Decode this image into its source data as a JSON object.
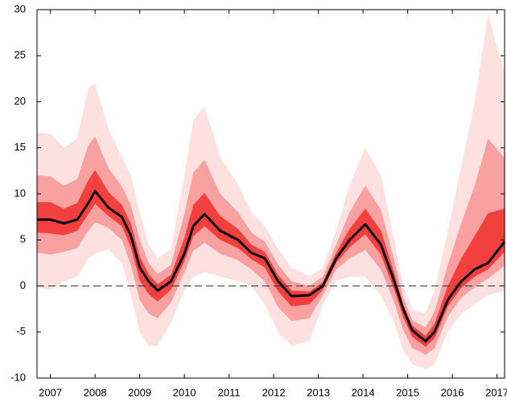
{
  "chart_data": {
    "type": "fan",
    "x": [
      2006.7,
      2007.0,
      2007.3,
      2007.6,
      2007.85,
      2008.0,
      2008.3,
      2008.6,
      2008.8,
      2009.0,
      2009.2,
      2009.4,
      2009.7,
      2010.0,
      2010.2,
      2010.45,
      2010.8,
      2011.2,
      2011.5,
      2011.8,
      2012.1,
      2012.4,
      2012.8,
      2013.1,
      2013.4,
      2013.7,
      2014.05,
      2014.4,
      2014.7,
      2014.9,
      2015.1,
      2015.4,
      2015.6,
      2015.9,
      2016.2,
      2016.5,
      2016.8,
      2017.17
    ],
    "bands": [
      {
        "color": "#fde0e0",
        "upper": [
          16.7,
          16.5,
          15,
          16,
          21.5,
          22,
          17,
          14,
          12,
          8,
          4.5,
          3,
          4,
          12,
          18,
          19.5,
          14,
          11,
          8,
          6.5,
          4,
          2,
          1,
          2,
          6,
          11,
          15,
          12,
          5,
          0,
          -2.5,
          -3,
          -0.5,
          6,
          13,
          20,
          29.5,
          23
        ],
        "lower": [
          0,
          -0.5,
          0.5,
          1,
          3,
          3.5,
          4,
          2.5,
          -1,
          -5,
          -6.5,
          -6.5,
          -4,
          -0.5,
          1,
          1.5,
          1,
          0.5,
          0,
          -2,
          -5,
          -6.5,
          -6,
          -2,
          0.5,
          1,
          1,
          -1,
          -4,
          -7,
          -8.5,
          -9,
          -8.5,
          -5,
          -3,
          -2,
          -1,
          -0.5
        ]
      },
      {
        "color": "#f9a0a0",
        "upper": [
          12.0,
          11.9,
          10.9,
          11.6,
          15.3,
          16.2,
          12.8,
          10.8,
          8.8,
          5.0,
          2.5,
          1.3,
          2.3,
          7.8,
          12.3,
          13.7,
          10.0,
          8.0,
          5.8,
          4.8,
          2.3,
          0.5,
          0.0,
          1.0,
          4.5,
          8.0,
          10.9,
          8.3,
          2.8,
          -1.3,
          -3.7,
          -4.5,
          -2.8,
          2.3,
          6.8,
          10.9,
          16.0,
          13.9
        ],
        "lower": [
          3.6,
          3.4,
          3.7,
          4.1,
          6.0,
          6.9,
          6.3,
          5.0,
          2.3,
          -1.5,
          -3.0,
          -3.5,
          -1.8,
          1.5,
          3.8,
          4.7,
          3.5,
          2.8,
          1.8,
          0.5,
          -2.3,
          -3.8,
          -3.5,
          -1.0,
          1.8,
          3.0,
          3.9,
          1.8,
          -1.8,
          -4.8,
          -6.7,
          -7.5,
          -6.8,
          -3.3,
          -1.3,
          -0.1,
          0.8,
          2.2
        ]
      },
      {
        "color": "#f2403f",
        "upper": [
          9.1,
          9.1,
          8.4,
          9.0,
          11.5,
          12.6,
          10.2,
          8.8,
          6.8,
          3.2,
          1.3,
          0.2,
          1.2,
          5.2,
          8.8,
          10.1,
          7.6,
          6.2,
          4.5,
          3.7,
          1.2,
          -0.5,
          -0.6,
          0.4,
          3.6,
          6.2,
          8.4,
          6.0,
          1.4,
          -2.0,
          -4.3,
          -5.4,
          -4.1,
          0.0,
          3.0,
          5.4,
          7.9,
          8.4
        ],
        "lower": [
          5.8,
          5.7,
          5.5,
          6.0,
          7.8,
          8.9,
          7.6,
          6.5,
          4.2,
          0.6,
          -0.9,
          -1.7,
          -0.4,
          2.7,
          5.4,
          6.5,
          5.0,
          4.1,
          2.9,
          2.0,
          -0.6,
          -2.2,
          -2.0,
          -0.4,
          2.5,
          4.2,
          5.6,
          3.4,
          -0.4,
          -3.4,
          -5.5,
          -6.6,
          -5.7,
          -2.2,
          -0.2,
          1.0,
          1.8,
          3.7
        ]
      }
    ],
    "series": [
      {
        "color": "#000000",
        "values": [
          7.2,
          7.2,
          6.8,
          7.2,
          9.0,
          10.3,
          8.5,
          7.5,
          5.5,
          2.0,
          0.5,
          -0.5,
          0.5,
          3.5,
          6.5,
          7.8,
          6.0,
          5.0,
          3.6,
          3.0,
          0.5,
          -1.1,
          -1.0,
          0.0,
          3.0,
          5.0,
          6.7,
          4.5,
          0.5,
          -2.5,
          -4.8,
          -6.0,
          -5.0,
          -1.5,
          0.5,
          1.8,
          2.5,
          4.8
        ]
      }
    ],
    "reference_line": 0,
    "xlim": [
      2006.7,
      2017.17
    ],
    "xticks": [
      2007,
      2008,
      2009,
      2010,
      2011,
      2012,
      2013,
      2014,
      2015,
      2016,
      2017
    ],
    "ylim": [
      -10,
      30
    ],
    "yticks": [
      -10,
      -5,
      0,
      5,
      10,
      15,
      20,
      25,
      30
    ]
  }
}
